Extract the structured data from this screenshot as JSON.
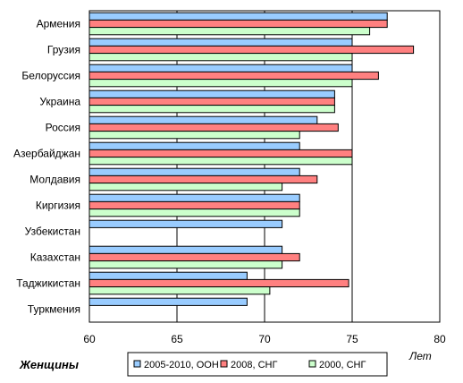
{
  "chart_data": {
    "type": "bar",
    "orientation": "horizontal",
    "caption": "Женщины",
    "unit_label": "Лет",
    "xlim": [
      60,
      80
    ],
    "xticks": [
      60,
      65,
      70,
      75,
      80
    ],
    "grid": true,
    "legend_position": "bottom",
    "categories": [
      "Армения",
      "Грузия",
      "Белоруссия",
      "Украина",
      "Россия",
      "Азербайджан",
      "Молдавия",
      "Киргизия",
      "Узбекистан",
      "Казахстан",
      "Таджикистан",
      "Туркмения"
    ],
    "series": [
      {
        "name": "2005-2010, ООН",
        "color": "#99ccff",
        "values": [
          77,
          75,
          75,
          74,
          73,
          72,
          72,
          72,
          71,
          71,
          69,
          69
        ]
      },
      {
        "name": "2008, СНГ",
        "color": "#ff8080",
        "values": [
          77,
          78.5,
          76.5,
          74,
          74.2,
          75,
          73,
          72,
          null,
          72,
          74.8,
          null
        ]
      },
      {
        "name": "2000, СНГ",
        "color": "#ccffcc",
        "values": [
          76,
          75,
          75,
          74,
          72,
          75,
          71,
          72,
          null,
          71,
          70.3,
          null
        ]
      }
    ]
  }
}
